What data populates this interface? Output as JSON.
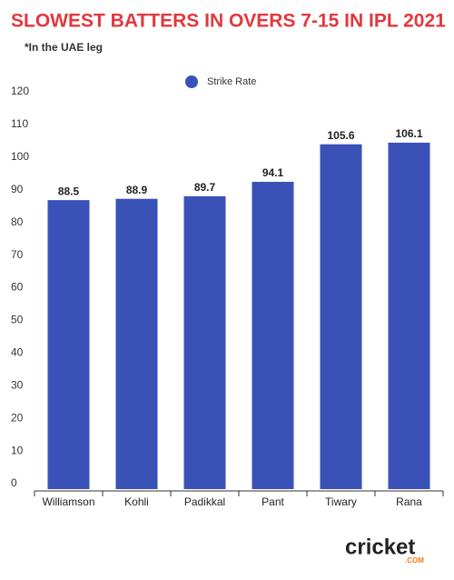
{
  "chart_data": {
    "type": "bar",
    "title": "SLOWEST BATTERS IN OVERS 7-15 IN IPL 2021",
    "subtitle": "*In the UAE leg",
    "categories": [
      "Williamson",
      "Kohli",
      "Padikkal",
      "Pant",
      "Tiwary",
      "Rana"
    ],
    "series": [
      {
        "name": "Strike Rate",
        "color": "#3a51b7",
        "values": [
          88.5,
          88.9,
          89.7,
          94.1,
          105.6,
          106.1
        ]
      }
    ],
    "ylim": [
      0,
      120
    ],
    "yticks": [
      0,
      10,
      20,
      30,
      40,
      50,
      60,
      70,
      80,
      90,
      100,
      110,
      120
    ],
    "grid": false,
    "legend": "top"
  },
  "logo": {
    "text": "cricket",
    "suffix": ".COM"
  }
}
